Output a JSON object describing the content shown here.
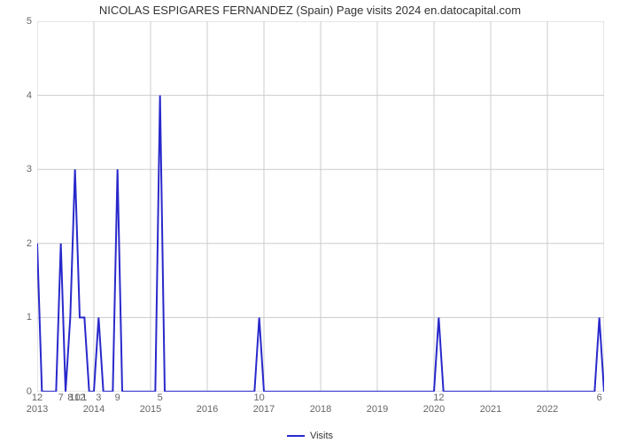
{
  "title": "NICOLAS ESPIGARES FERNANDEZ (Spain) Page visits 2024 en.datocapital.com",
  "chart": {
    "type": "line",
    "background_color": "#ffffff",
    "grid_color": "#cccccc",
    "axis_color": "#666666",
    "title_fontsize": 13,
    "label_fontsize": 11,
    "x_index_range": [
      0,
      120
    ],
    "ylim": [
      0,
      5
    ],
    "ytick_step": 1,
    "yticks": [
      0,
      1,
      2,
      3,
      4,
      5
    ],
    "xtick_positions": [
      0,
      12,
      24,
      36,
      48,
      60,
      72,
      84,
      96,
      108,
      120
    ],
    "xtick_labels": [
      "2013",
      "2014",
      "2015",
      "2016",
      "2017",
      "2018",
      "2019",
      "2020",
      "2021",
      "2022",
      ""
    ],
    "legend": {
      "label": "Visits",
      "color": "#2929cc"
    },
    "series_color": "#2929cc",
    "line_width": 2,
    "peaks": [
      {
        "idx": 0,
        "val": 2,
        "label": "12"
      },
      {
        "idx": 5,
        "val": 2,
        "label": "7"
      },
      {
        "idx": 7,
        "val": 1,
        "label": "8"
      },
      {
        "idx": 8,
        "val": 3,
        "label": "10"
      },
      {
        "idx": 9,
        "val": 1,
        "label": "12"
      },
      {
        "idx": 10,
        "val": 1,
        "label": "1"
      },
      {
        "idx": 13,
        "val": 1,
        "label": "3"
      },
      {
        "idx": 17,
        "val": 3,
        "label": "9"
      },
      {
        "idx": 26,
        "val": 4,
        "label": "5"
      },
      {
        "idx": 47,
        "val": 1,
        "label": "10"
      },
      {
        "idx": 85,
        "val": 1,
        "label": "12"
      },
      {
        "idx": 119,
        "val": 1,
        "label": "6"
      }
    ]
  }
}
